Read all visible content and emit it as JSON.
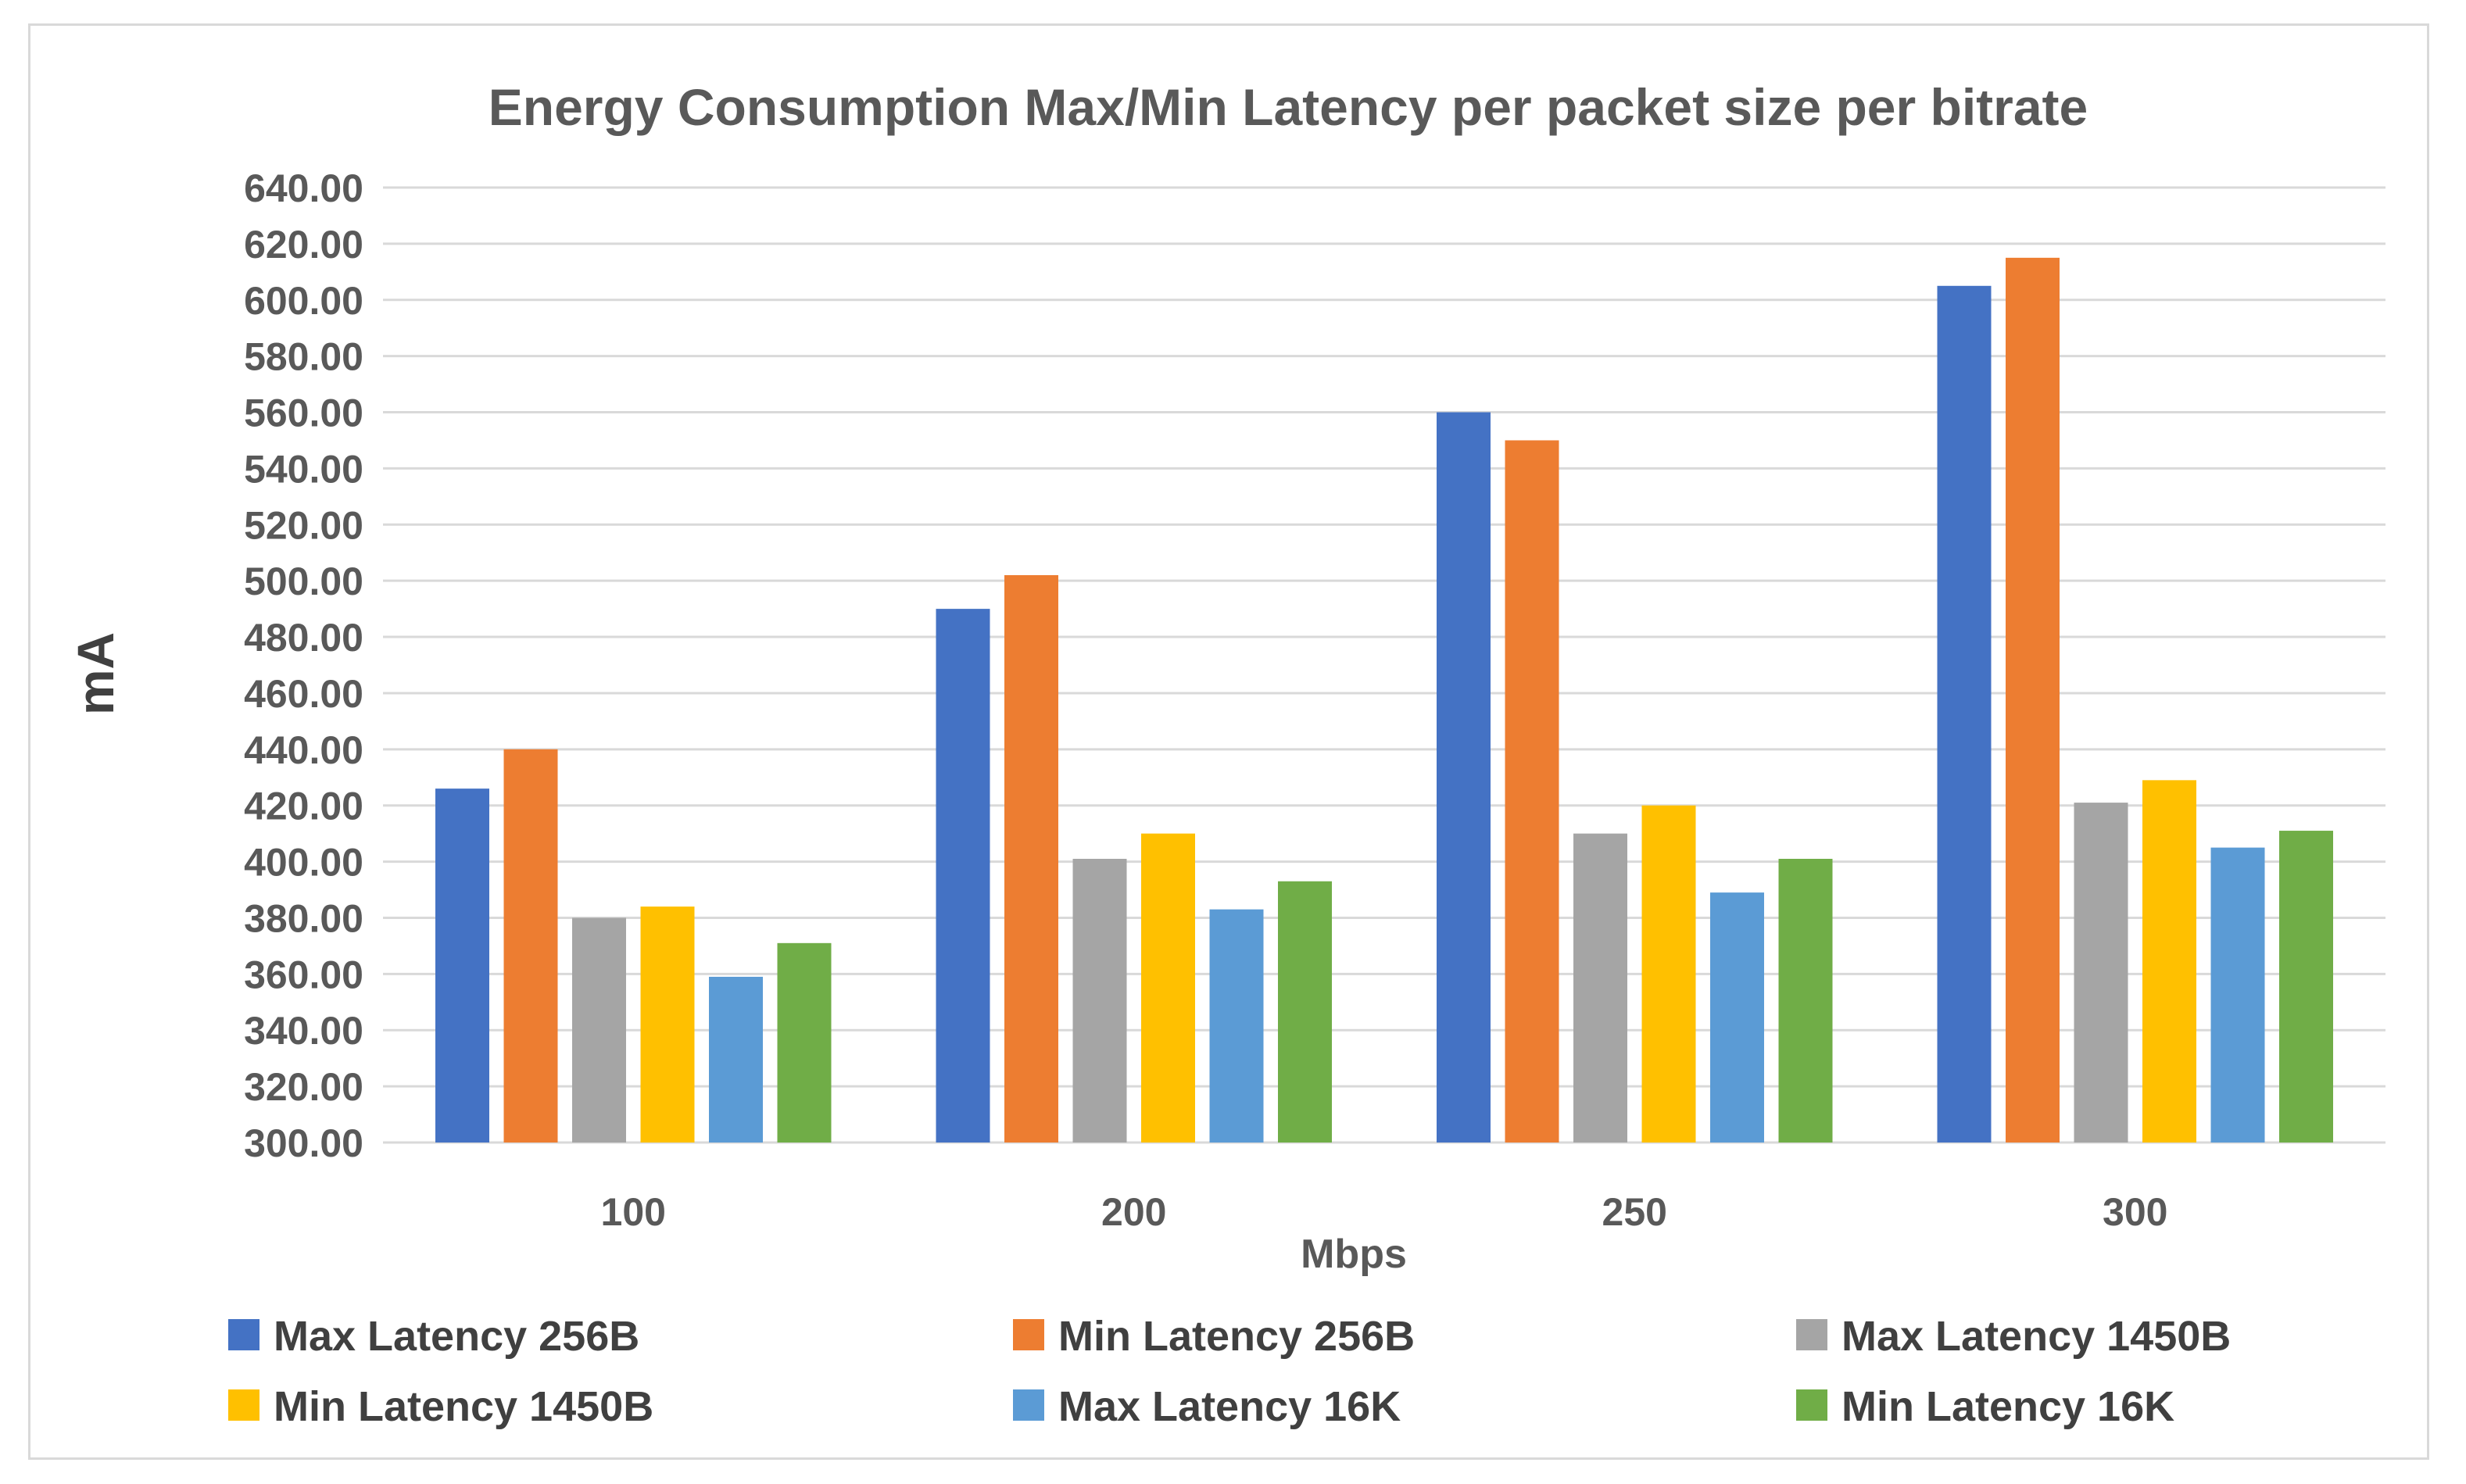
{
  "chart_data": {
    "type": "bar",
    "title": "Energy Consumption Max/Min Latency per packet size per bitrate",
    "xlabel": "Mbps",
    "ylabel": "mA",
    "categories": [
      "100",
      "200",
      "250",
      "300"
    ],
    "ylim": [
      300,
      640
    ],
    "ytick_step": 20,
    "ytick_labels": [
      "300.00",
      "320.00",
      "340.00",
      "360.00",
      "380.00",
      "400.00",
      "420.00",
      "440.00",
      "460.00",
      "480.00",
      "500.00",
      "520.00",
      "540.00",
      "560.00",
      "580.00",
      "600.00",
      "620.00",
      "640.00"
    ],
    "grid": true,
    "legend_position": "bottom",
    "series": [
      {
        "name": "Max Latency 256B",
        "color": "#4472c4",
        "values": [
          426,
          490,
          560,
          605
        ]
      },
      {
        "name": "Min Latency 256B",
        "color": "#ed7d31",
        "values": [
          440,
          502,
          550,
          615
        ]
      },
      {
        "name": "Max Latency 1450B",
        "color": "#a5a5a5",
        "values": [
          380,
          401,
          410,
          421
        ]
      },
      {
        "name": "Min Latency 1450B",
        "color": "#ffc000",
        "values": [
          384,
          410,
          420,
          429
        ]
      },
      {
        "name": "Max Latency 16K",
        "color": "#5b9bd5",
        "values": [
          359,
          383,
          389,
          405
        ]
      },
      {
        "name": "Min Latency 16K",
        "color": "#70ad47",
        "values": [
          371,
          393,
          401,
          411
        ]
      }
    ]
  }
}
